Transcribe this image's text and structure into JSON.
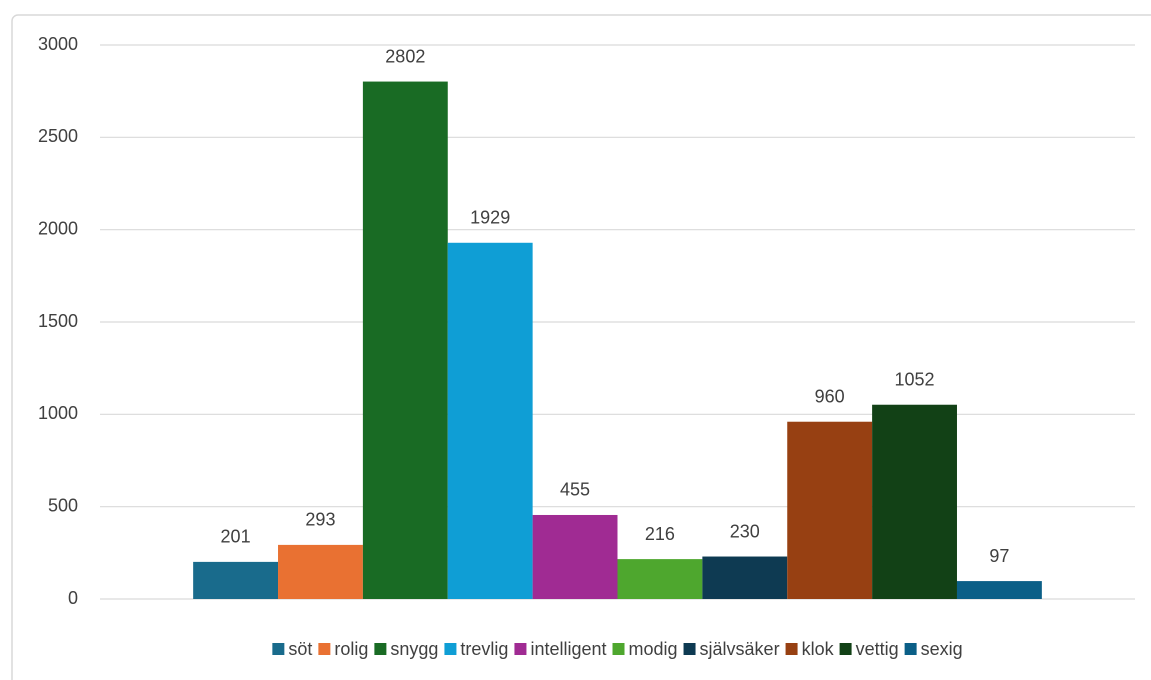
{
  "chart_data": {
    "type": "bar",
    "categories": [
      null
    ],
    "series": [
      {
        "name": "söt",
        "color": "#196b8c",
        "values": [
          201
        ]
      },
      {
        "name": "rolig",
        "color": "#e97132",
        "values": [
          293
        ]
      },
      {
        "name": "snygg",
        "color": "#196b24",
        "values": [
          2802
        ]
      },
      {
        "name": "trevlig",
        "color": "#0f9ed5",
        "values": [
          1929
        ]
      },
      {
        "name": "intelligent",
        "color": "#a02b93",
        "values": [
          455
        ]
      },
      {
        "name": "modig",
        "color": "#4ea72e",
        "values": [
          216
        ]
      },
      {
        "name": "självsäker",
        "color": "#0e3a52",
        "values": [
          230
        ]
      },
      {
        "name": "klok",
        "color": "#974012",
        "values": [
          960
        ]
      },
      {
        "name": "vettig",
        "color": "#124116",
        "values": [
          1052
        ]
      },
      {
        "name": "sexig",
        "color": "#0b5f87",
        "values": [
          97
        ]
      }
    ],
    "ylim": [
      0,
      3000
    ],
    "yticks": [
      0,
      500,
      1000,
      1500,
      2000,
      2500,
      3000
    ],
    "grid": true,
    "legend": "bottom"
  }
}
